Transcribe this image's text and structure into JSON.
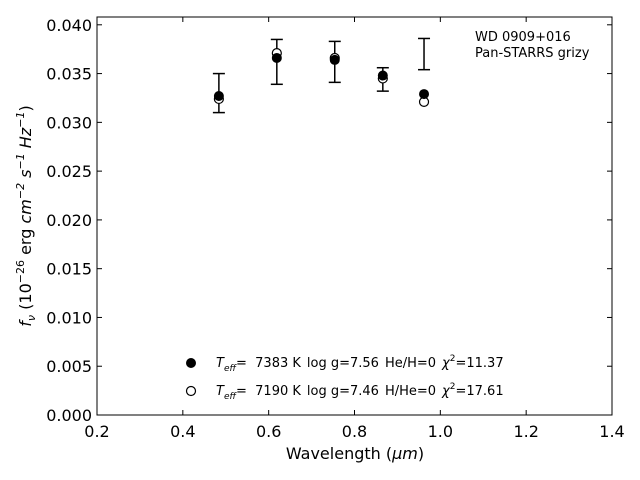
{
  "chart_data": {
    "type": "scatter",
    "xlabel": "Wavelength (μm)",
    "ylabel": "f_ν (10^-26 erg cm^-2 s^-1 Hz^-1)",
    "xlim": [
      0.2,
      1.4
    ],
    "ylim": [
      0.0,
      0.0408
    ],
    "xticks": [
      "0.2",
      "0.4",
      "0.6",
      "0.8",
      "1.0",
      "1.2",
      "1.4"
    ],
    "yticks": [
      "0.000",
      "0.005",
      "0.010",
      "0.015",
      "0.020",
      "0.025",
      "0.030",
      "0.035",
      "0.040"
    ],
    "grid": false,
    "legend_position": "bottom-center",
    "annotation": [
      "WD 0909+016",
      "Pan-STARRS grizy"
    ],
    "observed": {
      "x": [
        0.484,
        0.619,
        0.754,
        0.866,
        0.962
      ],
      "y": [
        0.033,
        0.0362,
        0.0362,
        0.0344,
        0.037
      ],
      "err": [
        0.002,
        0.0023,
        0.0021,
        0.0012,
        0.0016
      ]
    },
    "series": [
      {
        "name": "T_eff= 7383 K log g=7.56 He/H=0 χ²=11.37",
        "marker": "filled",
        "x": [
          0.484,
          0.619,
          0.754,
          0.866,
          0.962
        ],
        "y": [
          0.0327,
          0.0366,
          0.0364,
          0.0348,
          0.0329
        ]
      },
      {
        "name": "T_eff= 7190 K log g=7.46 H/He=0 χ²=17.61",
        "marker": "open",
        "x": [
          0.484,
          0.619,
          0.754,
          0.866,
          0.962
        ],
        "y": [
          0.0324,
          0.0371,
          0.0366,
          0.0345,
          0.0321
        ]
      }
    ]
  },
  "legend": {
    "entries": [
      {
        "teff_prefix": "T",
        "teff_sub": "eff",
        "temp": "=  7383 K",
        "logg": "log g=7.56",
        "comp": "He/H=0",
        "chi_prefix": "χ",
        "chi_sup": "2",
        "chi_val": "=11.37"
      },
      {
        "teff_prefix": "T",
        "teff_sub": "eff",
        "temp": "=  7190 K",
        "logg": "log g=7.46",
        "comp": "H/He=0",
        "chi_prefix": "χ",
        "chi_sup": "2",
        "chi_val": "=17.61"
      }
    ]
  },
  "labels": {
    "xlabel_text": "Wavelength (",
    "xlabel_unit": "μm",
    "xlabel_close": ")",
    "ylabel_f": "f",
    "ylabel_nu": "ν",
    "ylabel_open": " (10",
    "ylabel_exp": "−26",
    "ylabel_erg": " erg ",
    "ylabel_cm": "cm",
    "ylabel_cm_exp": "−2",
    "ylabel_s": " s",
    "ylabel_s_exp": "−1",
    "ylabel_hz": " Hz",
    "ylabel_hz_exp": "−1",
    "ylabel_close": ")"
  }
}
